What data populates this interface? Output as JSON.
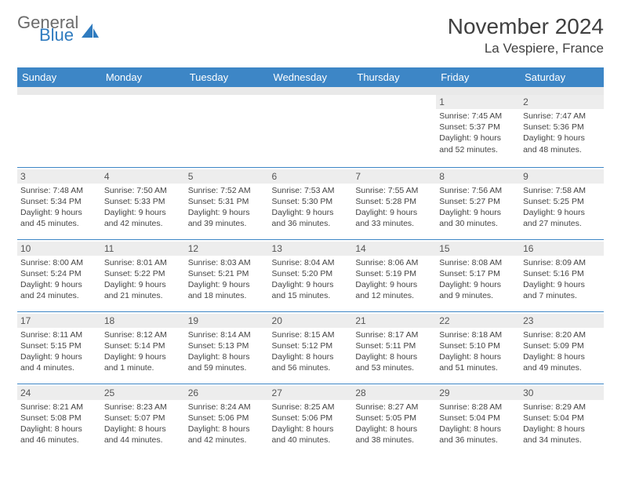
{
  "logo": {
    "text_general": "General",
    "text_blue": "Blue"
  },
  "title": "November 2024",
  "location": "La Vespiere, France",
  "colors": {
    "header_bg": "#3d86c6",
    "header_text": "#ffffff",
    "daynum_bg": "#ededed",
    "row_border": "#3d86c6",
    "logo_blue": "#2f7bbf",
    "logo_gray": "#6b6b6b"
  },
  "day_headers": [
    "Sunday",
    "Monday",
    "Tuesday",
    "Wednesday",
    "Thursday",
    "Friday",
    "Saturday"
  ],
  "weeks": [
    [
      {
        "n": "",
        "sr": "",
        "ss": "",
        "dl": ""
      },
      {
        "n": "",
        "sr": "",
        "ss": "",
        "dl": ""
      },
      {
        "n": "",
        "sr": "",
        "ss": "",
        "dl": ""
      },
      {
        "n": "",
        "sr": "",
        "ss": "",
        "dl": ""
      },
      {
        "n": "",
        "sr": "",
        "ss": "",
        "dl": ""
      },
      {
        "n": "1",
        "sr": "Sunrise: 7:45 AM",
        "ss": "Sunset: 5:37 PM",
        "dl": "Daylight: 9 hours and 52 minutes."
      },
      {
        "n": "2",
        "sr": "Sunrise: 7:47 AM",
        "ss": "Sunset: 5:36 PM",
        "dl": "Daylight: 9 hours and 48 minutes."
      }
    ],
    [
      {
        "n": "3",
        "sr": "Sunrise: 7:48 AM",
        "ss": "Sunset: 5:34 PM",
        "dl": "Daylight: 9 hours and 45 minutes."
      },
      {
        "n": "4",
        "sr": "Sunrise: 7:50 AM",
        "ss": "Sunset: 5:33 PM",
        "dl": "Daylight: 9 hours and 42 minutes."
      },
      {
        "n": "5",
        "sr": "Sunrise: 7:52 AM",
        "ss": "Sunset: 5:31 PM",
        "dl": "Daylight: 9 hours and 39 minutes."
      },
      {
        "n": "6",
        "sr": "Sunrise: 7:53 AM",
        "ss": "Sunset: 5:30 PM",
        "dl": "Daylight: 9 hours and 36 minutes."
      },
      {
        "n": "7",
        "sr": "Sunrise: 7:55 AM",
        "ss": "Sunset: 5:28 PM",
        "dl": "Daylight: 9 hours and 33 minutes."
      },
      {
        "n": "8",
        "sr": "Sunrise: 7:56 AM",
        "ss": "Sunset: 5:27 PM",
        "dl": "Daylight: 9 hours and 30 minutes."
      },
      {
        "n": "9",
        "sr": "Sunrise: 7:58 AM",
        "ss": "Sunset: 5:25 PM",
        "dl": "Daylight: 9 hours and 27 minutes."
      }
    ],
    [
      {
        "n": "10",
        "sr": "Sunrise: 8:00 AM",
        "ss": "Sunset: 5:24 PM",
        "dl": "Daylight: 9 hours and 24 minutes."
      },
      {
        "n": "11",
        "sr": "Sunrise: 8:01 AM",
        "ss": "Sunset: 5:22 PM",
        "dl": "Daylight: 9 hours and 21 minutes."
      },
      {
        "n": "12",
        "sr": "Sunrise: 8:03 AM",
        "ss": "Sunset: 5:21 PM",
        "dl": "Daylight: 9 hours and 18 minutes."
      },
      {
        "n": "13",
        "sr": "Sunrise: 8:04 AM",
        "ss": "Sunset: 5:20 PM",
        "dl": "Daylight: 9 hours and 15 minutes."
      },
      {
        "n": "14",
        "sr": "Sunrise: 8:06 AM",
        "ss": "Sunset: 5:19 PM",
        "dl": "Daylight: 9 hours and 12 minutes."
      },
      {
        "n": "15",
        "sr": "Sunrise: 8:08 AM",
        "ss": "Sunset: 5:17 PM",
        "dl": "Daylight: 9 hours and 9 minutes."
      },
      {
        "n": "16",
        "sr": "Sunrise: 8:09 AM",
        "ss": "Sunset: 5:16 PM",
        "dl": "Daylight: 9 hours and 7 minutes."
      }
    ],
    [
      {
        "n": "17",
        "sr": "Sunrise: 8:11 AM",
        "ss": "Sunset: 5:15 PM",
        "dl": "Daylight: 9 hours and 4 minutes."
      },
      {
        "n": "18",
        "sr": "Sunrise: 8:12 AM",
        "ss": "Sunset: 5:14 PM",
        "dl": "Daylight: 9 hours and 1 minute."
      },
      {
        "n": "19",
        "sr": "Sunrise: 8:14 AM",
        "ss": "Sunset: 5:13 PM",
        "dl": "Daylight: 8 hours and 59 minutes."
      },
      {
        "n": "20",
        "sr": "Sunrise: 8:15 AM",
        "ss": "Sunset: 5:12 PM",
        "dl": "Daylight: 8 hours and 56 minutes."
      },
      {
        "n": "21",
        "sr": "Sunrise: 8:17 AM",
        "ss": "Sunset: 5:11 PM",
        "dl": "Daylight: 8 hours and 53 minutes."
      },
      {
        "n": "22",
        "sr": "Sunrise: 8:18 AM",
        "ss": "Sunset: 5:10 PM",
        "dl": "Daylight: 8 hours and 51 minutes."
      },
      {
        "n": "23",
        "sr": "Sunrise: 8:20 AM",
        "ss": "Sunset: 5:09 PM",
        "dl": "Daylight: 8 hours and 49 minutes."
      }
    ],
    [
      {
        "n": "24",
        "sr": "Sunrise: 8:21 AM",
        "ss": "Sunset: 5:08 PM",
        "dl": "Daylight: 8 hours and 46 minutes."
      },
      {
        "n": "25",
        "sr": "Sunrise: 8:23 AM",
        "ss": "Sunset: 5:07 PM",
        "dl": "Daylight: 8 hours and 44 minutes."
      },
      {
        "n": "26",
        "sr": "Sunrise: 8:24 AM",
        "ss": "Sunset: 5:06 PM",
        "dl": "Daylight: 8 hours and 42 minutes."
      },
      {
        "n": "27",
        "sr": "Sunrise: 8:25 AM",
        "ss": "Sunset: 5:06 PM",
        "dl": "Daylight: 8 hours and 40 minutes."
      },
      {
        "n": "28",
        "sr": "Sunrise: 8:27 AM",
        "ss": "Sunset: 5:05 PM",
        "dl": "Daylight: 8 hours and 38 minutes."
      },
      {
        "n": "29",
        "sr": "Sunrise: 8:28 AM",
        "ss": "Sunset: 5:04 PM",
        "dl": "Daylight: 8 hours and 36 minutes."
      },
      {
        "n": "30",
        "sr": "Sunrise: 8:29 AM",
        "ss": "Sunset: 5:04 PM",
        "dl": "Daylight: 8 hours and 34 minutes."
      }
    ]
  ]
}
